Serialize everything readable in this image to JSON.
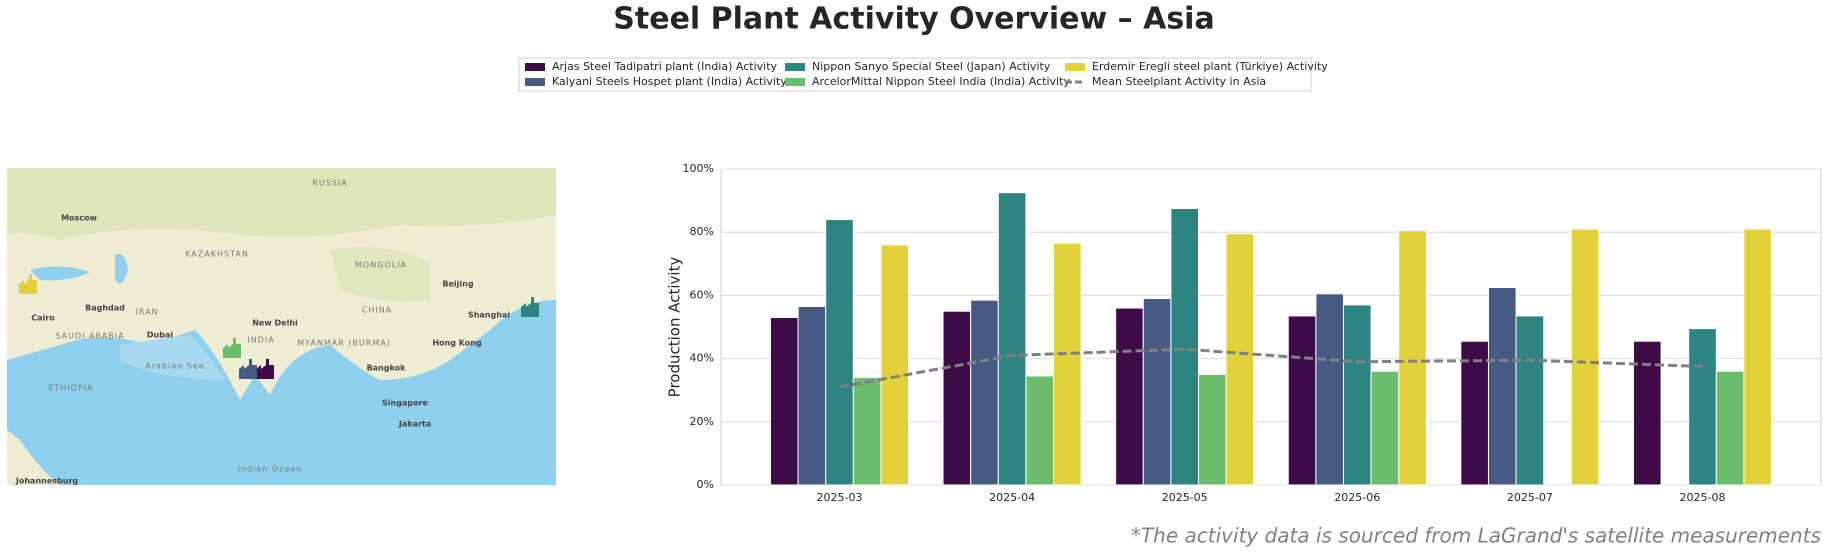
{
  "chart_data": {
    "type": "bar",
    "title": "Steel Plant Activity Overview – Asia",
    "ylabel": "Production Activity",
    "footnote": "*The activity data is sourced from LaGrand's satellite measurements",
    "categories": [
      "2025-03",
      "2025-04",
      "2025-05",
      "2025-06",
      "2025-07",
      "2025-08"
    ],
    "series": [
      {
        "name": "Arjas Steel Tadipatri plant (India) Activity",
        "color": "#3e0a47",
        "values": [
          53,
          55,
          56,
          53.5,
          45.5,
          45.5
        ]
      },
      {
        "name": "Kalyani Steels Hospet plant (India) Activity",
        "color": "#465a84",
        "values": [
          56.5,
          58.5,
          59,
          60.5,
          62.5,
          null
        ]
      },
      {
        "name": "Nippon Sanyo Special Steel (Japan) Activity",
        "color": "#2e8480",
        "values": [
          84,
          92.5,
          87.5,
          57,
          53.5,
          49.5
        ]
      },
      {
        "name": "ArcelorMittal Nippon Steel India (India) Activity",
        "color": "#6bbd6c",
        "values": [
          34,
          34.5,
          35,
          36,
          null,
          36
        ]
      },
      {
        "name": "Erdemir Eregli steel plant (Türkiye) Activity",
        "color": "#e2d13b",
        "values": [
          76,
          76.5,
          79.5,
          80.5,
          81,
          81
        ]
      }
    ],
    "lines": [
      {
        "name": "Mean Steelplant Activity in Asia",
        "color": "#808080",
        "linestyle": "dashed",
        "values": [
          31,
          41,
          43,
          39,
          39.5,
          37.5
        ]
      }
    ],
    "ylim": [
      0,
      100
    ],
    "yticks": [
      {
        "value": 0,
        "label": "0%"
      },
      {
        "value": 20,
        "label": "20%"
      },
      {
        "value": 40,
        "label": "40%"
      },
      {
        "value": 60,
        "label": "60%"
      },
      {
        "value": 80,
        "label": "80%"
      },
      {
        "value": 100,
        "label": "100%"
      }
    ],
    "grid": true,
    "legend": "top"
  },
  "map": {
    "labels": [
      "RUSSIA",
      "Moscow",
      "KAZAKHSTAN",
      "MONGOLIA",
      "Beijing",
      "CHINA",
      "Shanghai",
      "Baghdad",
      "IRAN",
      "Cairo",
      "SAUDI ARABIA",
      "Dubai",
      "New Delhi",
      "INDIA",
      "MYANMAR (BURMA)",
      "Hong Kong",
      "Arabian Sea",
      "Bangkok",
      "ETHIOPIA",
      "Singapore",
      "Jakarta",
      "Indian Ocean",
      "Johannesburg"
    ]
  }
}
